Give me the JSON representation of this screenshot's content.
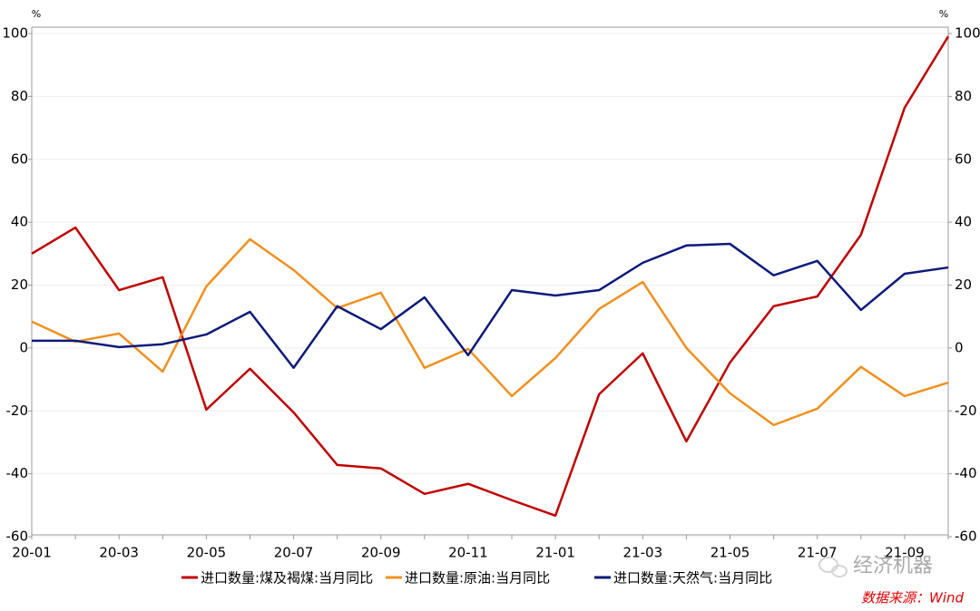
{
  "chart_data": {
    "type": "line",
    "y_unit": "%",
    "y2_unit": "%",
    "categories": [
      "20-01",
      null,
      "20-03",
      null,
      "20-05",
      null,
      "20-07",
      null,
      "20-09",
      null,
      "20-11",
      null,
      "21-01",
      null,
      "21-03",
      null,
      "21-05",
      null,
      "21-07",
      null,
      "21-09",
      null
    ],
    "series": [
      {
        "name": "进口数量:煤及褐煤:当月同比",
        "color": "#c00000",
        "values": [
          30,
          38.3,
          18.4,
          22.5,
          -19.6,
          -6.6,
          -20.5,
          -37.2,
          -38.3,
          -46.4,
          -43.2,
          -48.4,
          -53.3,
          -14.7,
          -1.7,
          -29.7,
          -4.6,
          13.3,
          16.4,
          36,
          76.4,
          99.1
        ]
      },
      {
        "name": "进口数量:原油:当月同比",
        "color": "#f0901e",
        "values": [
          8.4,
          2,
          4.6,
          -7.5,
          19.6,
          34.6,
          24.8,
          12.7,
          17.6,
          -6.3,
          -0.3,
          -15.3,
          -3.2,
          12.4,
          21,
          0,
          -14.4,
          -24.5,
          -19.3,
          -6,
          -15.3,
          -11
        ]
      },
      {
        "name": "进口数量:天然气:当月同比",
        "color": "#0c1a7a",
        "values": [
          2.3,
          2.3,
          0.3,
          1.2,
          4.3,
          11.5,
          -6.3,
          13.3,
          6,
          16.1,
          -2.3,
          18.4,
          16.7,
          18.4,
          27.1,
          32.6,
          33.1,
          23.1,
          27.7,
          12.1,
          23.6,
          25.6
        ]
      }
    ],
    "ylim": [
      -60,
      100
    ],
    "yticks": [
      -60,
      -40,
      -20,
      0,
      20,
      40,
      60,
      80,
      100
    ],
    "y2lim": [
      -60,
      100
    ],
    "y2ticks": [
      -60,
      -40,
      -20,
      0,
      20,
      40,
      60,
      80,
      100
    ],
    "grid": true,
    "legend": "bottom",
    "source": "数据来源：Wind",
    "watermark": "经济机器"
  }
}
